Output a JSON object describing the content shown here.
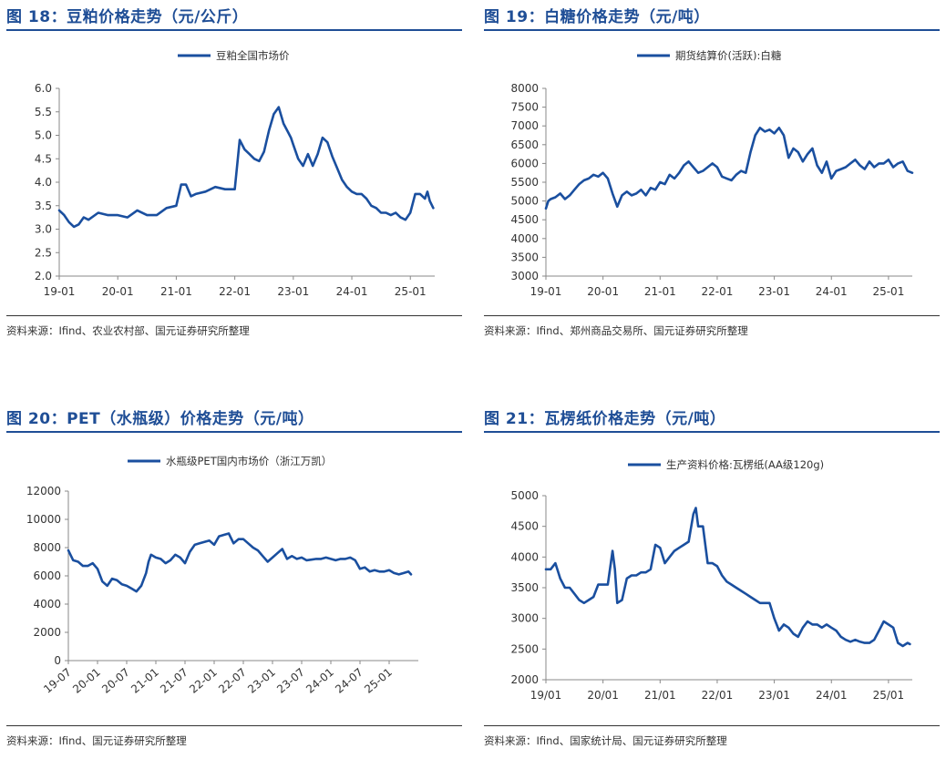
{
  "panels": [
    {
      "title": "图 18：豆粕价格走势（元/公斤）",
      "source": "资料来源：Ifind、农业农村部、国元证券研究所整理"
    },
    {
      "title": "图 19：白糖价格走势（元/吨）",
      "source": "资料来源：Ifind、郑州商品交易所、国元证券研究所整理"
    },
    {
      "title": "图 20：PET（水瓶级）价格走势（元/吨）",
      "source": "资料来源：Ifind、国元证券研究所整理"
    },
    {
      "title": "图 21：瓦楞纸价格走势（元/吨）",
      "source": "资料来源：Ifind、国家统计局、国元证券研究所整理"
    }
  ],
  "style": {
    "line_color": "#1a4f9f",
    "title_color": "#1f4e96"
  },
  "chart_data": [
    {
      "type": "line",
      "title": "图 18：豆粕价格走势（元/公斤）",
      "legend": "豆粕全国市场价",
      "ylim": [
        2.0,
        6.0
      ],
      "yticks": [
        "2.0",
        "2.5",
        "3.0",
        "3.5",
        "4.0",
        "4.5",
        "5.0",
        "5.5",
        "6.0"
      ],
      "xlim": [
        0,
        77
      ],
      "xticks": [
        {
          "v": 0,
          "label": "19-01"
        },
        {
          "v": 12,
          "label": "20-01"
        },
        {
          "v": 24,
          "label": "21-01"
        },
        {
          "v": 36,
          "label": "22-01"
        },
        {
          "v": 48,
          "label": "23-01"
        },
        {
          "v": 60,
          "label": "24-01"
        },
        {
          "v": 72,
          "label": "25-01"
        }
      ],
      "x": [
        0,
        1,
        2,
        3,
        4,
        5,
        6,
        8,
        10,
        12,
        14,
        16,
        18,
        20,
        22,
        24,
        25,
        26,
        27,
        28,
        30,
        32,
        34,
        36,
        37,
        38,
        39,
        40,
        41,
        42,
        43,
        44,
        45,
        46,
        47,
        47.5,
        48,
        49,
        50,
        51,
        52,
        53,
        54,
        55,
        56,
        57,
        58,
        59,
        60,
        61,
        62,
        63,
        64,
        65,
        66,
        67,
        68,
        69,
        70,
        71,
        72,
        73,
        74,
        75,
        75.5,
        76,
        76.7
      ],
      "y": [
        3.4,
        3.3,
        3.15,
        3.05,
        3.1,
        3.25,
        3.2,
        3.35,
        3.3,
        3.3,
        3.25,
        3.4,
        3.3,
        3.3,
        3.45,
        3.5,
        3.95,
        3.95,
        3.7,
        3.75,
        3.8,
        3.9,
        3.85,
        3.85,
        4.9,
        4.7,
        4.6,
        4.5,
        4.45,
        4.65,
        5.1,
        5.45,
        5.6,
        5.25,
        5.05,
        4.95,
        4.8,
        4.5,
        4.35,
        4.6,
        4.35,
        4.6,
        4.95,
        4.85,
        4.55,
        4.3,
        4.05,
        3.9,
        3.8,
        3.75,
        3.75,
        3.65,
        3.5,
        3.45,
        3.35,
        3.35,
        3.3,
        3.35,
        3.25,
        3.2,
        3.35,
        3.75,
        3.75,
        3.65,
        3.8,
        3.6,
        3.45
      ]
    },
    {
      "type": "line",
      "title": "图 19：白糖价格走势（元/吨）",
      "legend": "期货结算价(活跃):白糖",
      "ylim": [
        3000,
        8000
      ],
      "yticks": [
        "3000",
        "3500",
        "4000",
        "4500",
        "5000",
        "5500",
        "6000",
        "6500",
        "7000",
        "7500",
        "8000"
      ],
      "xlim": [
        0,
        77
      ],
      "xticks": [
        {
          "v": 0,
          "label": "19-01"
        },
        {
          "v": 12,
          "label": "20-01"
        },
        {
          "v": 24,
          "label": "21-01"
        },
        {
          "v": 36,
          "label": "22-01"
        },
        {
          "v": 48,
          "label": "23-01"
        },
        {
          "v": 60,
          "label": "24-01"
        },
        {
          "v": 72,
          "label": "25-01"
        }
      ],
      "x": [
        0,
        0.5,
        1,
        2,
        3,
        4,
        5,
        6,
        7,
        8,
        9,
        10,
        11,
        12,
        13,
        14,
        15,
        16,
        17,
        18,
        19,
        20,
        21,
        22,
        23,
        24,
        25,
        26,
        27,
        28,
        29,
        30,
        31,
        32,
        33,
        34,
        35,
        36,
        37,
        38,
        39,
        40,
        41,
        42,
        43,
        44,
        45,
        46,
        47,
        48,
        49,
        50,
        51,
        52,
        53,
        54,
        55,
        56,
        57,
        58,
        59,
        60,
        61,
        62,
        63,
        64,
        65,
        66,
        67,
        68,
        69,
        70,
        71,
        72,
        73,
        74,
        75,
        76,
        77
      ],
      "y": [
        4800,
        5000,
        5050,
        5100,
        5200,
        5050,
        5150,
        5300,
        5450,
        5550,
        5600,
        5700,
        5650,
        5750,
        5600,
        5200,
        4850,
        5150,
        5250,
        5150,
        5200,
        5300,
        5150,
        5350,
        5300,
        5500,
        5450,
        5700,
        5600,
        5750,
        5950,
        6050,
        5900,
        5750,
        5800,
        5900,
        6000,
        5900,
        5650,
        5600,
        5550,
        5700,
        5800,
        5750,
        6300,
        6750,
        6950,
        6850,
        6900,
        6800,
        6950,
        6750,
        6150,
        6400,
        6300,
        6050,
        6250,
        6400,
        5950,
        5750,
        6050,
        5600,
        5800,
        5850,
        5900,
        6000,
        6100,
        5950,
        5850,
        6050,
        5900,
        6000,
        6000,
        6100,
        5900,
        6000,
        6050,
        5800,
        5750
      ]
    },
    {
      "type": "line",
      "title": "图 20：PET（水瓶级）价格走势（元/吨）",
      "legend": "水瓶级PET国内市场价（浙江万凯）",
      "ylim": [
        0,
        12000
      ],
      "yticks": [
        "0",
        "2000",
        "4000",
        "6000",
        "8000",
        "10000",
        "12000"
      ],
      "xlim": [
        0,
        72
      ],
      "xticks": [
        {
          "v": 0,
          "label": "19-07"
        },
        {
          "v": 6,
          "label": "20-01"
        },
        {
          "v": 12,
          "label": "20-07"
        },
        {
          "v": 18,
          "label": "21-01"
        },
        {
          "v": 24,
          "label": "21-07"
        },
        {
          "v": 30,
          "label": "22-01"
        },
        {
          "v": 36,
          "label": "22-07"
        },
        {
          "v": 42,
          "label": "23-01"
        },
        {
          "v": 48,
          "label": "23-07"
        },
        {
          "v": 54,
          "label": "24-01"
        },
        {
          "v": 60,
          "label": "24-07"
        },
        {
          "v": 66,
          "label": "25-01"
        }
      ],
      "x": [
        0,
        1,
        2,
        3,
        4,
        5,
        6,
        7,
        8,
        9,
        10,
        11,
        12,
        13,
        14,
        15,
        16,
        16.5,
        17,
        18,
        19,
        20,
        21,
        22,
        23,
        24,
        25,
        26,
        27,
        28,
        29,
        30,
        31,
        32,
        33,
        34,
        35,
        36,
        37,
        38,
        39,
        40,
        41,
        42,
        43,
        44,
        45,
        46,
        47,
        48,
        49,
        50,
        51,
        52,
        53,
        54,
        55,
        56,
        57,
        58,
        59,
        60,
        61,
        62,
        63,
        64,
        65,
        66,
        67,
        68,
        69,
        70,
        70.5
      ],
      "y": [
        7800,
        7100,
        7000,
        6700,
        6700,
        6900,
        6500,
        5600,
        5300,
        5800,
        5700,
        5400,
        5300,
        5100,
        4900,
        5300,
        6200,
        7000,
        7500,
        7300,
        7200,
        6900,
        7100,
        7500,
        7300,
        6900,
        7700,
        8200,
        8300,
        8400,
        8500,
        8200,
        8800,
        8900,
        9000,
        8300,
        8600,
        8600,
        8300,
        8000,
        7800,
        7400,
        7000,
        7300,
        7600,
        7900,
        7200,
        7400,
        7200,
        7300,
        7100,
        7150,
        7200,
        7200,
        7300,
        7200,
        7100,
        7200,
        7200,
        7300,
        7100,
        6500,
        6600,
        6300,
        6400,
        6300,
        6300,
        6400,
        6200,
        6100,
        6200,
        6300,
        6100
      ]
    },
    {
      "type": "line",
      "title": "图 21：瓦楞纸价格走势（元/吨）",
      "legend": "生产资料价格:瓦楞纸(AA级120g)",
      "ylim": [
        2000,
        5000
      ],
      "yticks": [
        "2000",
        "2500",
        "3000",
        "3500",
        "4000",
        "4500",
        "5000"
      ],
      "xlim": [
        0,
        77
      ],
      "xticks": [
        {
          "v": 0,
          "label": "19/01"
        },
        {
          "v": 12,
          "label": "20/01"
        },
        {
          "v": 24,
          "label": "21/01"
        },
        {
          "v": 36,
          "label": "22/01"
        },
        {
          "v": 48,
          "label": "23/01"
        },
        {
          "v": 60,
          "label": "24/01"
        },
        {
          "v": 72,
          "label": "25/01"
        }
      ],
      "x": [
        0,
        1,
        2,
        3,
        4,
        5,
        6,
        7,
        8,
        9,
        10,
        11,
        12,
        13,
        14,
        14.5,
        15,
        16,
        17,
        18,
        19,
        20,
        21,
        22,
        23,
        24,
        25,
        26,
        27,
        28,
        29,
        30,
        31,
        31.5,
        32,
        33,
        34,
        35,
        36,
        37,
        38,
        39,
        40,
        41,
        42,
        43,
        44,
        45,
        46,
        47,
        48,
        49,
        50,
        51,
        52,
        53,
        54,
        55,
        56,
        57,
        58,
        59,
        60,
        61,
        62,
        63,
        64,
        65,
        66,
        67,
        68,
        69,
        70,
        71,
        72,
        73,
        74,
        75,
        76,
        76.5
      ],
      "y": [
        3800,
        3800,
        3900,
        3650,
        3500,
        3500,
        3400,
        3300,
        3250,
        3300,
        3350,
        3550,
        3550,
        3550,
        4100,
        3800,
        3250,
        3300,
        3650,
        3700,
        3700,
        3750,
        3750,
        3800,
        4200,
        4150,
        3900,
        4000,
        4100,
        4150,
        4200,
        4250,
        4700,
        4800,
        4500,
        4500,
        3900,
        3900,
        3850,
        3700,
        3600,
        3550,
        3500,
        3450,
        3400,
        3350,
        3300,
        3250,
        3250,
        3250,
        3000,
        2800,
        2900,
        2850,
        2750,
        2700,
        2850,
        2950,
        2900,
        2900,
        2850,
        2900,
        2850,
        2800,
        2700,
        2650,
        2620,
        2650,
        2620,
        2600,
        2600,
        2650,
        2800,
        2950,
        2900,
        2850,
        2600,
        2550,
        2600,
        2580
      ]
    }
  ]
}
